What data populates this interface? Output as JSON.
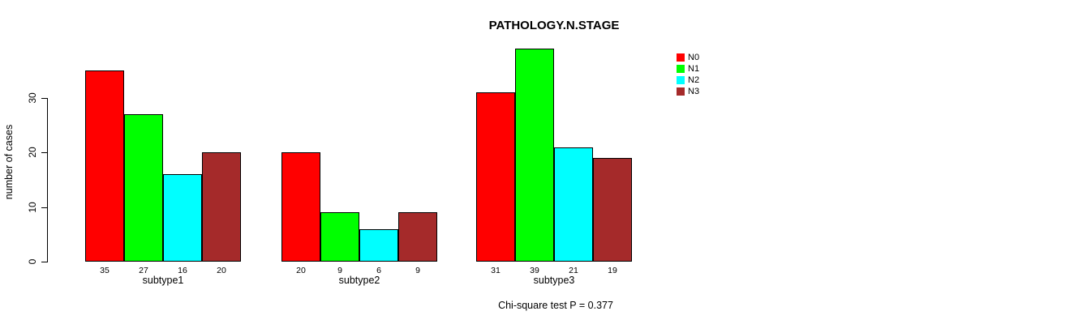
{
  "chart_data": {
    "type": "bar",
    "title": "PATHOLOGY.N.STAGE",
    "xlabel": "",
    "ylabel": "number of cases",
    "categories": [
      "subtype1",
      "subtype2",
      "subtype3"
    ],
    "series": [
      {
        "name": "N0",
        "color": "#ff0000",
        "values": [
          35,
          20,
          31
        ]
      },
      {
        "name": "N1",
        "color": "#00ff00",
        "values": [
          27,
          9,
          39
        ]
      },
      {
        "name": "N2",
        "color": "#00ffff",
        "values": [
          16,
          6,
          21
        ]
      },
      {
        "name": "N3",
        "color": "#a52a2a",
        "values": [
          20,
          9,
          19
        ]
      }
    ],
    "yticks": [
      0,
      10,
      20,
      30
    ],
    "ylim": [
      0,
      39
    ],
    "grid": false,
    "bar_value_labels_shown": true,
    "legend_position": "top-right",
    "legend": [
      "N0",
      "N1",
      "N2",
      "N3"
    ],
    "annotation": "Chi-square test P = 0.377"
  },
  "colors": {
    "axis": "#000000",
    "text": "#000000",
    "background": "#ffffff"
  }
}
